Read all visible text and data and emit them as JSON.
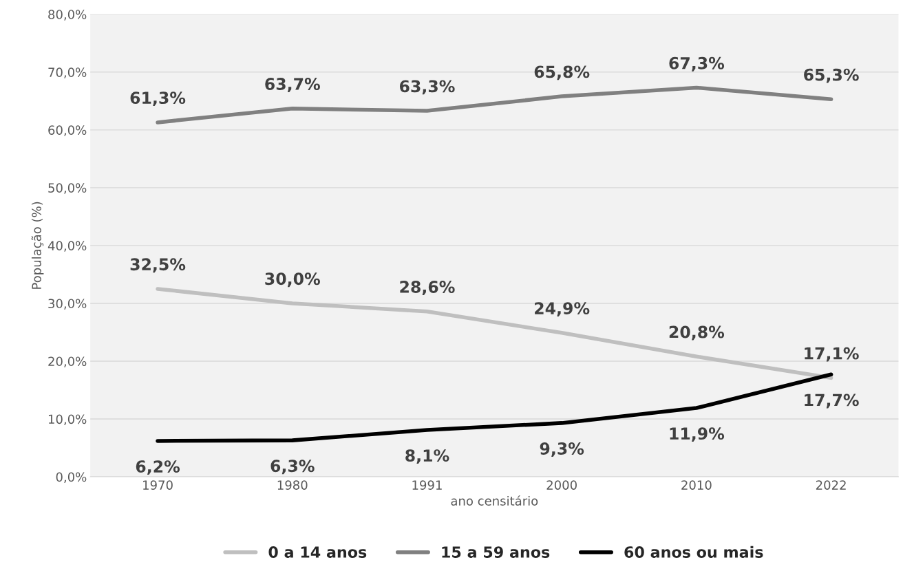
{
  "chart_data": {
    "type": "line",
    "xlabel": "ano censitário",
    "ylabel": "População (%)",
    "categories": [
      "1970",
      "1980",
      "1991",
      "2000",
      "2010",
      "2022"
    ],
    "series": [
      {
        "name": "0 a 14 anos",
        "color": "#bfbfbf",
        "values": [
          32.5,
          30.0,
          28.6,
          24.9,
          20.8,
          17.1
        ],
        "value_labels": [
          "32,5%",
          "30,0%",
          "28,6%",
          "24,9%",
          "20,8%",
          "17,1%"
        ]
      },
      {
        "name": "15 a 59 anos",
        "color": "#808080",
        "values": [
          61.3,
          63.7,
          63.3,
          65.8,
          67.3,
          65.3
        ],
        "value_labels": [
          "61,3%",
          "63,7%",
          "63,3%",
          "65,8%",
          "67,3%",
          "65,3%"
        ]
      },
      {
        "name": "60 anos ou mais",
        "color": "#000000",
        "values": [
          6.2,
          6.3,
          8.1,
          9.3,
          11.9,
          17.7
        ],
        "value_labels": [
          "6,2%",
          "6,3%",
          "8,1%",
          "9,3%",
          "11,9%",
          "17,7%"
        ]
      }
    ],
    "ylim": [
      0,
      80
    ],
    "yticks": [
      {
        "value": 0,
        "label": "0,0%"
      },
      {
        "value": 10,
        "label": "10,0%"
      },
      {
        "value": 20,
        "label": "20,0%"
      },
      {
        "value": 30,
        "label": "30,0%"
      },
      {
        "value": 40,
        "label": "40,0%"
      },
      {
        "value": 50,
        "label": "50,0%"
      },
      {
        "value": 60,
        "label": "60,0%"
      },
      {
        "value": 70,
        "label": "70,0%"
      },
      {
        "value": 80,
        "label": "80,0%"
      }
    ],
    "grid": "y",
    "legend": "bottom",
    "marker": "none",
    "line_style": "solid"
  }
}
